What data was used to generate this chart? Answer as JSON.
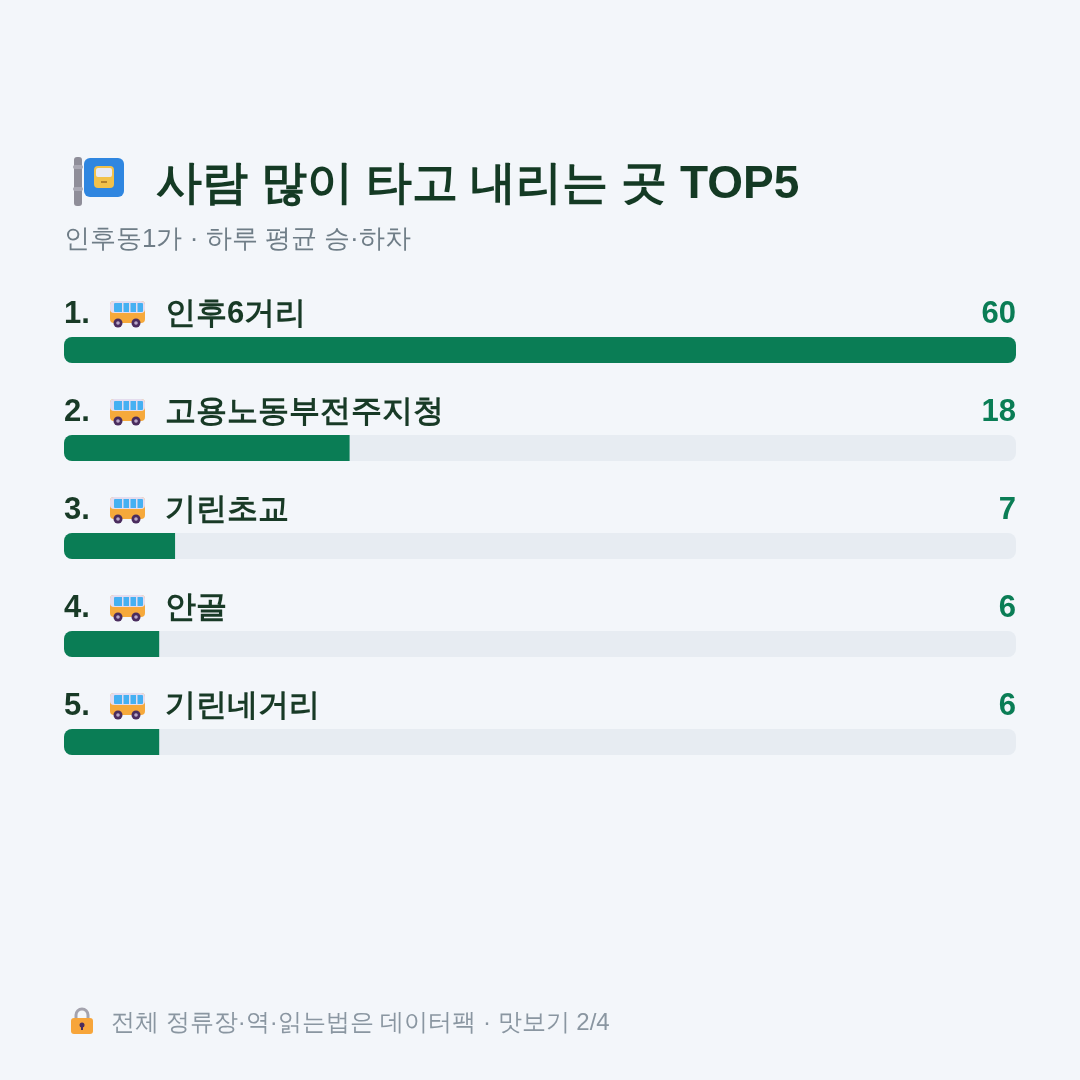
{
  "chart_data": {
    "type": "bar",
    "orientation": "horizontal",
    "title": "사람 많이 타고 내리는 곳 TOP5",
    "subtitle": "인후동1가 · 하루 평균 승·하차",
    "categories": [
      "1. 인후6거리",
      "2. 고용노동부전주지청",
      "3. 기린초교",
      "4. 안골",
      "5. 기린네거리"
    ],
    "values": [
      60,
      18,
      7,
      6,
      6
    ],
    "color": "#0a7d55",
    "xlim": [
      0,
      60
    ],
    "data_labels": true,
    "annotations": [
      "전체 정류장·역·읽는법은 데이터팩 · 맛보기 2/4"
    ]
  }
}
